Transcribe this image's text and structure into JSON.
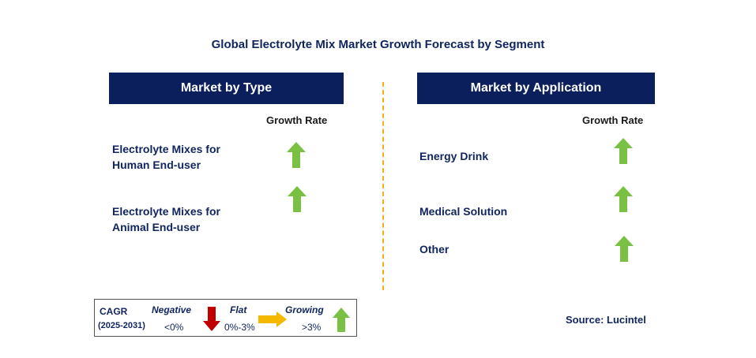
{
  "title": "Global Electrolyte Mix Market Growth Forecast by Segment",
  "colors": {
    "header_bg": "#0b1f5c",
    "divider": "#f2b01e",
    "arrow_up": "#7ac143",
    "arrow_down": "#c00000",
    "arrow_flat": "#f5b800"
  },
  "type_panel": {
    "header": "Market by Type",
    "growth_label": "Growth Rate",
    "segments": [
      {
        "line1": "Electrolyte Mixes for",
        "line2": "Human End-user",
        "trend": "up-arrow-icon"
      },
      {
        "line1": "Electrolyte Mixes for",
        "line2": "Animal End-user",
        "trend": "up-arrow-icon"
      }
    ]
  },
  "app_panel": {
    "header": "Market by Application",
    "growth_label": "Growth Rate",
    "segments": [
      {
        "label": "Energy Drink",
        "trend": "up-arrow-icon"
      },
      {
        "label": "Medical Solution",
        "trend": "up-arrow-icon"
      },
      {
        "label": "Other",
        "trend": "up-arrow-icon"
      }
    ]
  },
  "legend": {
    "cagr": "CAGR",
    "period": "(2025-2031)",
    "negative": "Negative",
    "negative_range": "<0%",
    "flat": "Flat",
    "flat_range": "0%-3%",
    "growing": "Growing",
    "growing_range": ">3%"
  },
  "source": "Source: Lucintel"
}
